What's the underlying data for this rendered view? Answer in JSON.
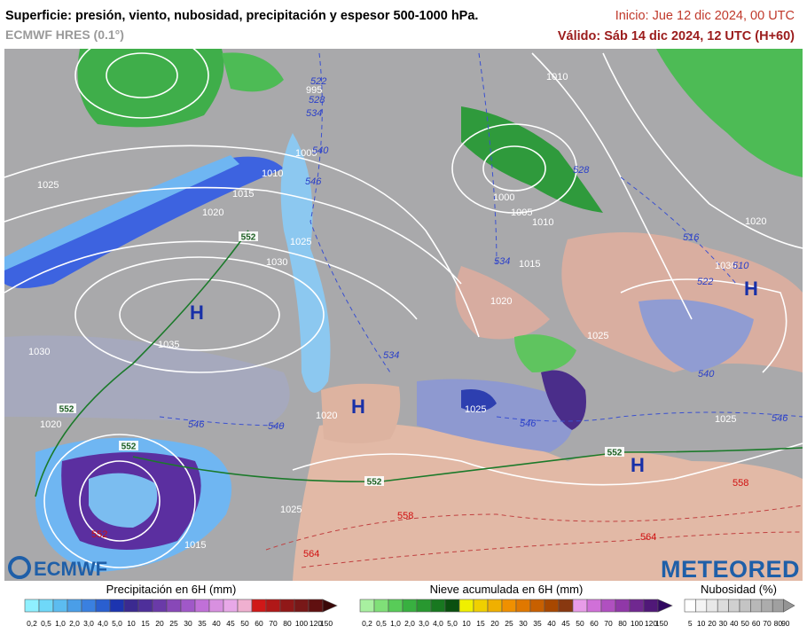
{
  "header": {
    "title": "Superficie: presión, viento, nubosidad, precipitación y espesor 500-1000 hPa.",
    "model": "ECMWF HRES (0.1°)",
    "init": "Inicio: Jue 12 dic 2024, 00 UTC",
    "valid": "Válido: Sáb 14 dic 2024, 12 UTC (H+60)"
  },
  "map": {
    "pressure_labels": [
      1025,
      1020,
      1015,
      1010,
      1005,
      995,
      1025,
      1030,
      1035,
      1030,
      1020,
      1025,
      1015,
      1020,
      1025,
      1000,
      1005,
      1010,
      1015,
      1020,
      1025,
      1025,
      1010,
      1020,
      1030
    ],
    "thickness_labels": [
      522,
      528,
      534,
      540,
      546,
      534,
      534,
      516,
      522,
      510,
      540,
      546,
      546,
      540,
      546,
      528
    ],
    "boxed_labels": [
      552,
      552,
      552,
      552,
      552
    ],
    "warm_labels": [
      558,
      564,
      564,
      552,
      558
    ],
    "highs": [
      "H",
      "H",
      "H",
      "H"
    ]
  },
  "brands": {
    "left": "ECMWF",
    "right": "METEORED"
  },
  "legends": {
    "precipitation": {
      "title": "Precipitación en 6H (mm)",
      "ticks": [
        "0,2",
        "0,5",
        "1,0",
        "2,0",
        "3,0",
        "4,0",
        "5,0",
        "10",
        "15",
        "20",
        "25",
        "30",
        "35",
        "40",
        "45",
        "50",
        "60",
        "70",
        "80",
        "100",
        "120",
        "150"
      ]
    },
    "snow": {
      "title": "Nieve acumulada en 6H (mm)",
      "ticks": [
        "0,2",
        "0,5",
        "1,0",
        "2,0",
        "3,0",
        "4,0",
        "5,0",
        "10",
        "15",
        "20",
        "25",
        "30",
        "35",
        "40",
        "45",
        "50",
        "60",
        "70",
        "80",
        "100",
        "120",
        "150"
      ]
    },
    "cloud": {
      "title": "Nubosidad (%)",
      "ticks": [
        "5",
        "10",
        "20",
        "30",
        "40",
        "50",
        "60",
        "70",
        "80",
        "90"
      ]
    }
  }
}
